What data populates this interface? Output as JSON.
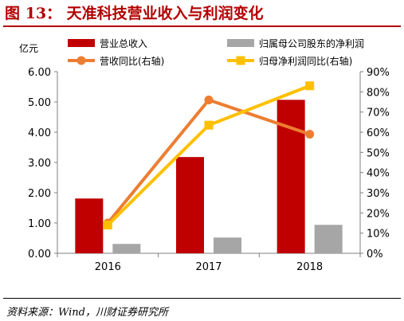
{
  "figure": {
    "title": "图 13：  天准科技营业收入与利润变化",
    "source": "资料来源：Wind，川财证券研究所"
  },
  "chart_data": {
    "type": "bar",
    "categories": [
      "2016",
      "2017",
      "2018"
    ],
    "left_unit": "亿元",
    "left_ticks": [
      "0.00",
      "1.00",
      "2.00",
      "3.00",
      "4.00",
      "5.00",
      "6.00"
    ],
    "right_ticks": [
      "0%",
      "10%",
      "20%",
      "30%",
      "40%",
      "50%",
      "60%",
      "70%",
      "80%",
      "90%"
    ],
    "ylim_left": [
      0,
      6
    ],
    "ylim_right": [
      0,
      0.9
    ],
    "bar_series": [
      {
        "name": "营业总收入",
        "color": "#c00000",
        "values": [
          1.81,
          3.18,
          5.07
        ]
      },
      {
        "name": "归属母公司股东的净利润",
        "color": "#a6a6a6",
        "values": [
          0.31,
          0.52,
          0.94
        ]
      }
    ],
    "line_series": [
      {
        "name": "营收同比(右轴)",
        "color": "#ed7d31",
        "marker": "circle",
        "values": [
          0.15,
          0.76,
          0.59
        ]
      },
      {
        "name": "归母净利润同比(右轴)",
        "color": "#ffc000",
        "marker": "square",
        "values": [
          0.14,
          0.635,
          0.83
        ]
      }
    ],
    "legend_position": "top"
  }
}
